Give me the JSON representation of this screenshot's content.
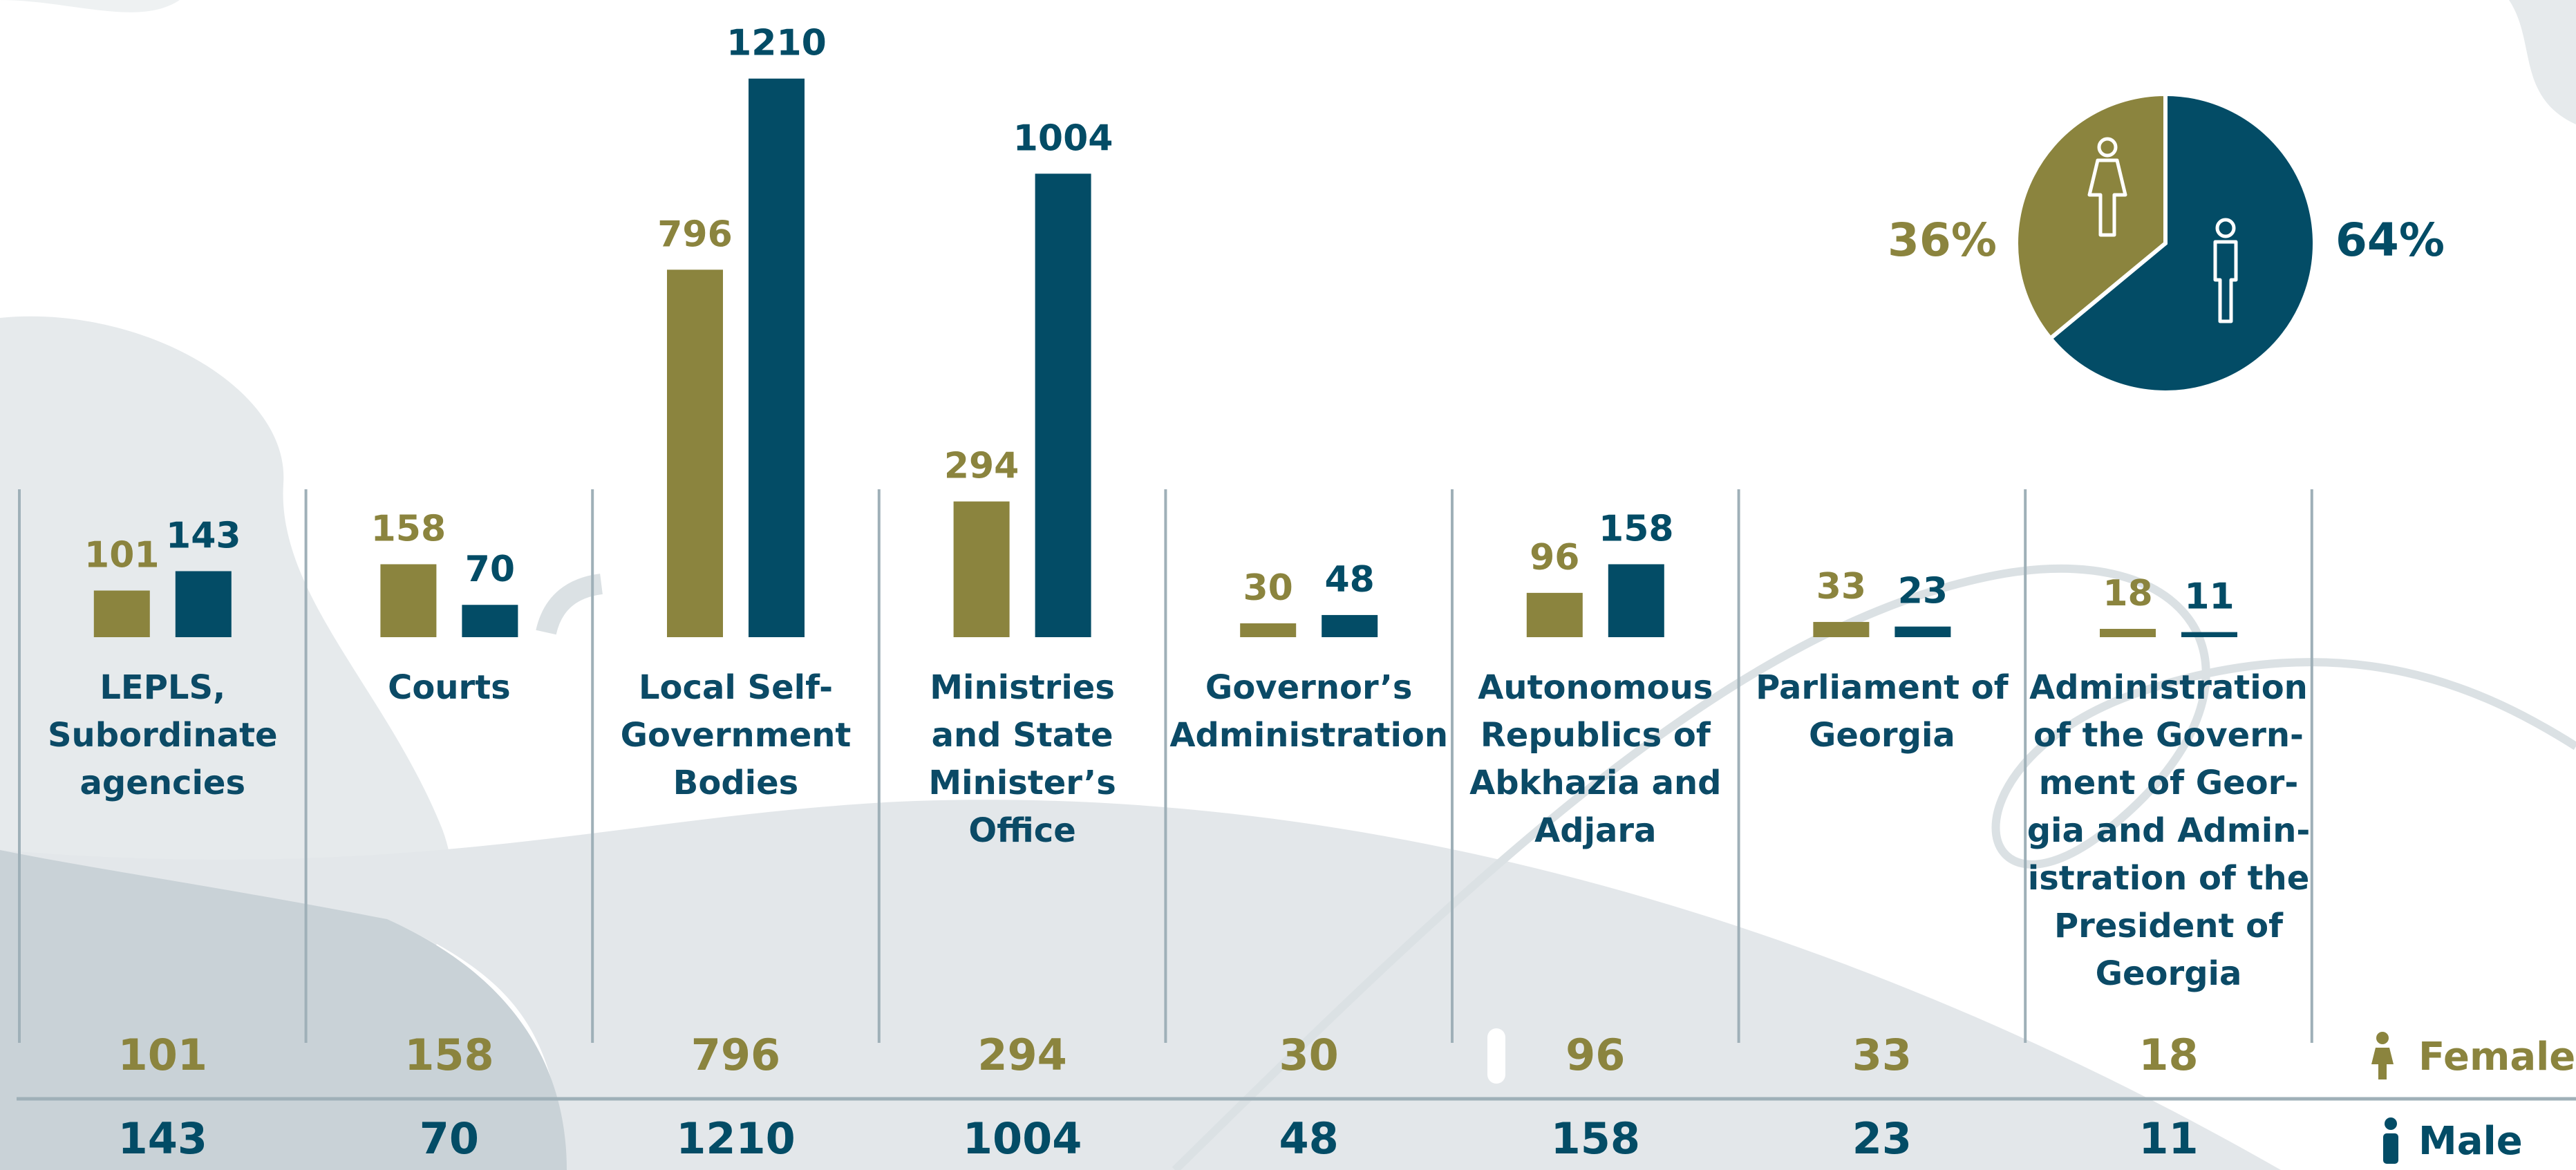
{
  "chart_data": [
    {
      "type": "bar",
      "categories": [
        "LEPLS,\nSubordinate\nagencies",
        "Courts",
        "Local Self-\nGovernment\nBodies",
        "Ministries\nand State\nMinister’s\nOffice",
        "Governor’s\nAdministration",
        "Autonomous\nRepublics of\nAbkhazia and\nAdjara",
        "Parliament of\nGeorgia",
        "Administration\nof the Govern-\nment of Geor-\ngia and Admin-\nistration of the\nPresident of\nGeorgia"
      ],
      "series": [
        {
          "name": "Female",
          "color": "#8b843e",
          "values": [
            101,
            158,
            796,
            294,
            30,
            96,
            33,
            18
          ]
        },
        {
          "name": "Male",
          "color": "#034c66",
          "values": [
            143,
            70,
            1210,
            1004,
            48,
            158,
            23,
            11
          ]
        }
      ]
    },
    {
      "type": "pie",
      "values": [
        36,
        64
      ],
      "value_labels": [
        "36%",
        "64%"
      ],
      "colors": [
        "#8b843e",
        "#034c66"
      ]
    }
  ]
}
